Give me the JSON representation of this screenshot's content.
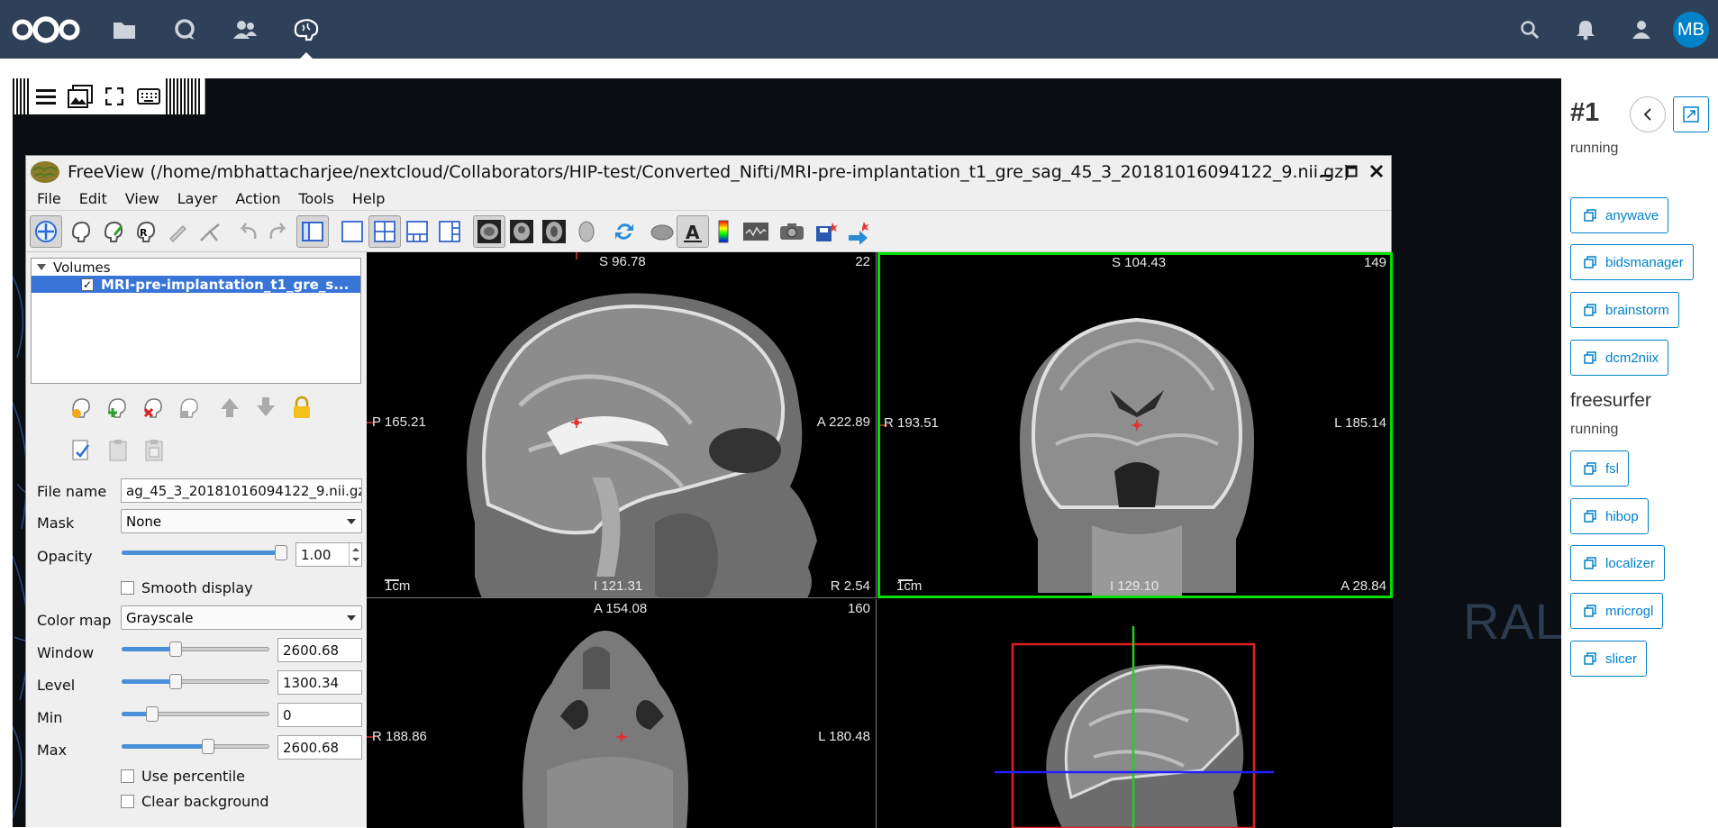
{
  "topbar": {
    "apps": [
      "files-icon",
      "talk-icon",
      "contacts-icon",
      "brain-app-icon"
    ],
    "avatar_initials": "MB"
  },
  "freeview": {
    "title": "FreeView (/home/mbhattacharjee/nextcloud/Collaborators/HIP-test/Converted_Nifti/MRI-pre-implantation_t1_gre_sag_45_3_20181016094122_9.nii.gz)",
    "menu": [
      "File",
      "Edit",
      "View",
      "Layer",
      "Action",
      "Tools",
      "Help"
    ],
    "layers": {
      "group": "Volumes",
      "item": "MRI-pre-implantation_t1_gre_s..."
    },
    "props": {
      "file_name_label": "File name",
      "file_name_value": "ag_45_3_20181016094122_9.nii.gz",
      "mask_label": "Mask",
      "mask_value": "None",
      "opacity_label": "Opacity",
      "opacity_value": "1.00",
      "smooth_label": "Smooth display",
      "colormap_label": "Color map",
      "colormap_value": "Grayscale",
      "window_label": "Window",
      "window_value": "2600.68",
      "level_label": "Level",
      "level_value": "1300.34",
      "min_label": "Min",
      "min_value": "0",
      "max_label": "Max",
      "max_value": "2600.68",
      "percentile_label": "Use percentile",
      "clearbg_label": "Clear background"
    },
    "slider_levels": {
      "opacity": 1.0,
      "window": 0.35,
      "level": 0.35,
      "min": 0.18,
      "max": 0.59
    },
    "views": {
      "sagittal": {
        "top": "S 96.78",
        "slice": "22",
        "left": "P 165.21",
        "right": "A 222.89",
        "bottom": "I 121.31",
        "bottom_right": "R 2.54",
        "scale": "1cm"
      },
      "coronal": {
        "top": "S 104.43",
        "slice": "149",
        "left": "R 193.51",
        "right": "L 185.14",
        "bottom": "I 129.10",
        "bottom_right": "A 28.84",
        "scale": "1cm"
      },
      "axial": {
        "top": "A 154.08",
        "slice": "160",
        "left": "R 188.86",
        "right": "L 180.48"
      }
    }
  },
  "desktop": {
    "watermark": "RAL"
  },
  "sidebar": {
    "instance_title": "#1",
    "instance_status": "running",
    "apps_before": [
      "anywave",
      "bidsmanager",
      "brainstorm",
      "dcm2niix"
    ],
    "running_app_name": "freesurfer",
    "running_app_status": "running",
    "apps_after": [
      "fsl",
      "hibop",
      "localizer",
      "mricrogl",
      "slicer"
    ]
  },
  "colors": {
    "nextcloud_header": "#2e4158",
    "nextcloud_blue": "#0082c9",
    "selection": "#3875d7",
    "active_view_border": "#00e000"
  }
}
